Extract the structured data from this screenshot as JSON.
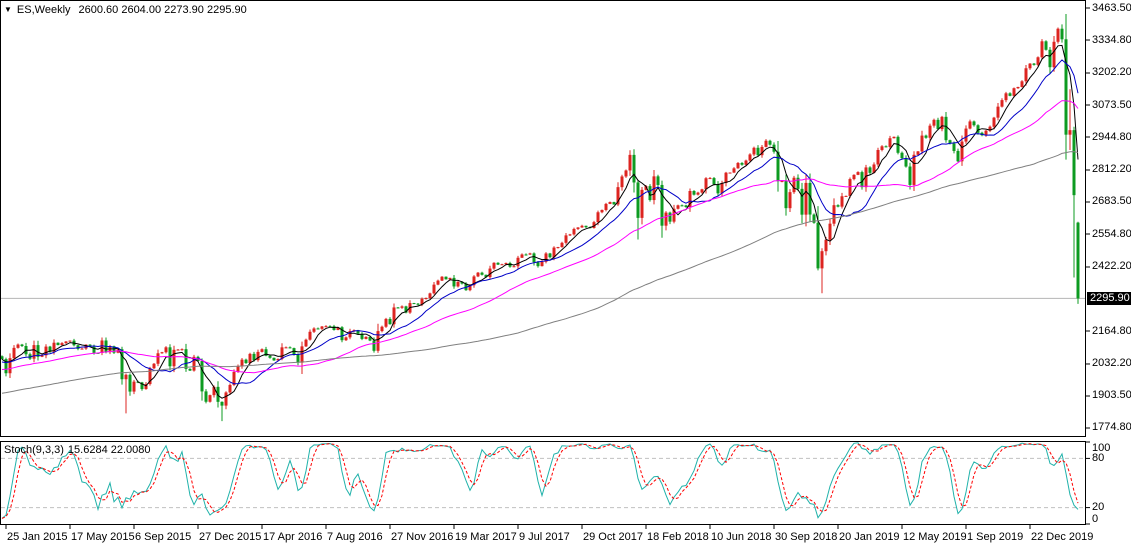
{
  "title": {
    "symbol": "ES,Weekly",
    "ohlc": "2600.60 2604.00 2273.90 2295.90"
  },
  "indicator_label": {
    "name": "Stoch(9,3,3)",
    "values": "15.6284 22.0080"
  },
  "colors": {
    "background": "#ffffff",
    "panel_border": "#000000",
    "bull": "#dd2420",
    "bear": "#0d9b21",
    "ma1": "#000000",
    "ma2": "#0000c8",
    "ma3": "#ff00ff",
    "ma4": "#808080",
    "stoch_main": "#20b2aa",
    "stoch_signal": "#ff0000",
    "level_line": "#c0c0c0",
    "price_line": "#b4b4b4",
    "tag_bg": "#000000",
    "tag_fg": "#ffffff",
    "axis_text": "#000000"
  },
  "chart_data": {
    "type": "candlestick",
    "title": "ES,Weekly — weekly candlesticks (red = up, green = down) with 4 moving averages and Stochastic(9,3,3) sub-panel",
    "current_bar": {
      "open": 2600.6,
      "high": 2604.0,
      "low": 2273.9,
      "close": 2295.9
    },
    "price_line_value": 2295.9,
    "price_tag": "2295.90",
    "ylim": [
      1738.6,
      3495.7
    ],
    "price_axis_ticks": [
      "3463.50",
      "3334.80",
      "3202.20",
      "3073.50",
      "2944.80",
      "2812.20",
      "2683.50",
      "2554.80",
      "2422.20",
      "2164.80",
      "2032.20",
      "1903.50",
      "1774.80"
    ],
    "date_ticks": [
      {
        "label": "25 Jan 2015",
        "bar": 1
      },
      {
        "label": "17 May 2015",
        "bar": 17
      },
      {
        "label": "6 Sep 2015",
        "bar": 33
      },
      {
        "label": "27 Dec 2015",
        "bar": 49
      },
      {
        "label": "17 Apr 2016",
        "bar": 65
      },
      {
        "label": "7 Aug 2016",
        "bar": 81
      },
      {
        "label": "27 Nov 2016",
        "bar": 97
      },
      {
        "label": "19 Mar 2017",
        "bar": 113
      },
      {
        "label": "9 Jul 2017",
        "bar": 129
      },
      {
        "label": "29 Oct 2017",
        "bar": 145
      },
      {
        "label": "18 Feb 2018",
        "bar": 161
      },
      {
        "label": "10 Jun 2018",
        "bar": 177
      },
      {
        "label": "30 Sep 2018",
        "bar": 193
      },
      {
        "label": "20 Jan 2019",
        "bar": 209
      },
      {
        "label": "12 May 2019",
        "bar": 225
      },
      {
        "label": "1 Sep 2019",
        "bar": 241
      },
      {
        "label": "22 Dec 2019",
        "bar": 257
      }
    ],
    "weekly_closes": [
      2051.8,
      1995.0,
      2055.5,
      2097.0,
      2110.3,
      2104.5,
      2071.3,
      2053.4,
      2108.1,
      2061.0,
      2066.9,
      2102.1,
      2081.2,
      2117.7,
      2108.3,
      2116.1,
      2122.7,
      2126.1,
      2107.4,
      2092.8,
      2094.1,
      2109.9,
      2101.5,
      2076.8,
      2076.6,
      2126.6,
      2079.6,
      2103.8,
      2077.6,
      2091.5,
      1970.9,
      1988.9,
      1921.2,
      1961.1,
      1958.0,
      1931.3,
      1951.4,
      2014.9,
      2033.1,
      2075.2,
      2079.4,
      2099.2,
      2023.0,
      2089.2,
      2090.1,
      2091.7,
      2012.4,
      2005.6,
      2061.0,
      2043.9,
      1922.0,
      1880.3,
      1906.9,
      1940.2,
      1880.0,
      1864.8,
      1917.8,
      1948.0,
      2000.0,
      2022.2,
      2049.6,
      2035.9,
      2072.8,
      2047.6,
      2080.7,
      2091.6,
      2065.3,
      2057.1,
      2046.6,
      2052.3,
      2099.1,
      2099.1,
      2096.1,
      2071.2,
      2037.4,
      2103.0,
      2129.9,
      2161.7,
      2175.0,
      2173.6,
      2182.9,
      2184.1,
      2183.9,
      2169.0,
      2180.0,
      2127.8,
      2139.2,
      2164.7,
      2168.3,
      2153.7,
      2133.0,
      2141.2,
      2126.4,
      2085.2,
      2164.5,
      2182.0,
      2213.4,
      2192.0,
      2259.5,
      2258.1,
      2263.8,
      2238.8,
      2277.0,
      2274.6,
      2271.3,
      2294.7,
      2297.4,
      2316.1,
      2351.2,
      2367.3,
      2383.1,
      2372.6,
      2378.3,
      2344.0,
      2362.7,
      2355.5,
      2329.0,
      2348.7,
      2384.2,
      2399.3,
      2390.9,
      2381.7,
      2415.8,
      2439.1,
      2431.8,
      2433.2,
      2438.3,
      2423.4,
      2425.2,
      2459.3,
      2472.5,
      2472.1,
      2476.8,
      2441.3,
      2425.6,
      2443.1,
      2476.6,
      2461.4,
      2500.2,
      2502.2,
      2519.4,
      2549.3,
      2553.2,
      2575.2,
      2581.1,
      2587.8,
      2582.3,
      2578.9,
      2602.4,
      2642.2,
      2651.5,
      2675.8,
      2683.3,
      2673.6,
      2743.2,
      2786.2,
      2810.3,
      2872.9,
      2762.1,
      2619.6,
      2732.2,
      2747.3,
      2691.3,
      2786.6,
      2752.0,
      2588.3,
      2640.9,
      2604.5,
      2656.3,
      2670.1,
      2669.9,
      2663.4,
      2727.7,
      2713.0,
      2721.3,
      2734.6,
      2779.0,
      2779.7,
      2754.9,
      2718.4,
      2759.8,
      2801.3,
      2801.8,
      2818.8,
      2840.4,
      2833.3,
      2850.1,
      2874.7,
      2901.5,
      2871.7,
      2905.0,
      2929.7,
      2914.0,
      2885.6,
      2767.1,
      2767.8,
      2658.7,
      2723.1,
      2781.0,
      2736.3,
      2632.6,
      2760.2,
      2633.1,
      2600.0,
      2416.6,
      2485.7,
      2531.9,
      2596.3,
      2670.7,
      2664.8,
      2706.5,
      2707.9,
      2775.6,
      2792.7,
      2803.7,
      2743.1,
      2822.5,
      2800.7,
      2834.4,
      2892.7,
      2907.4,
      2905.0,
      2939.9,
      2945.6,
      2881.4,
      2859.5,
      2826.1,
      2752.1,
      2873.3,
      2887.0,
      2950.5,
      2941.8,
      2990.4,
      3013.8,
      2976.6,
      3025.9,
      2932.1,
      2918.7,
      2888.7,
      2847.1,
      2926.5,
      2978.7,
      3007.4,
      2992.1,
      2961.8,
      2952.0,
      2970.3,
      2986.2,
      3022.6,
      3066.9,
      3093.1,
      3120.5,
      3110.3,
      3141.0,
      3146.0,
      3168.8,
      3221.2,
      3240.0,
      3234.9,
      3265.4,
      3329.6,
      3295.5,
      3225.5,
      3327.7,
      3380.2,
      3337.8,
      2954.2,
      2972.4,
      2711.0,
      2295.9
    ],
    "bar_overrides": {
      "0": {
        "open": 2063.2
      },
      "30": {
        "high": 2101.5,
        "low": 1949.0
      },
      "31": {
        "high": 1994.0,
        "low": 1833.5
      },
      "55": {
        "low": 1802.5
      },
      "75": {
        "low": 1991.7
      },
      "159": {
        "low": 2532.7
      },
      "204": {
        "low": 2408.6
      },
      "205": {
        "low": 2316.8
      },
      "264": {
        "high": 3385.1
      },
      "265": {
        "high": 3397.5
      },
      "266": {
        "low": 2853.9
      },
      "267": {
        "high": 3136.7,
        "low": 2892.5
      },
      "268": {
        "high": 2985.9,
        "low": 2380.0
      },
      "269": {
        "open": 2600.6,
        "high": 2604.0,
        "low": 2273.9
      }
    },
    "moving_averages": [
      {
        "period": 5,
        "color_key": "ma1"
      },
      {
        "period": 13,
        "color_key": "ma2"
      },
      {
        "period": 34,
        "color_key": "ma3"
      },
      {
        "period": 100,
        "color_key": "ma4"
      }
    ],
    "ma_warmup": {
      "weeks": 110,
      "start": 1740,
      "end": 2055
    },
    "stochastic": {
      "k_period": 9,
      "k_smooth": 3,
      "d_period": 3,
      "levels": [
        80,
        20
      ],
      "scale_labels": [
        100,
        80,
        20,
        0
      ],
      "k_value": "15.6284",
      "d_value": "22.0080"
    }
  }
}
